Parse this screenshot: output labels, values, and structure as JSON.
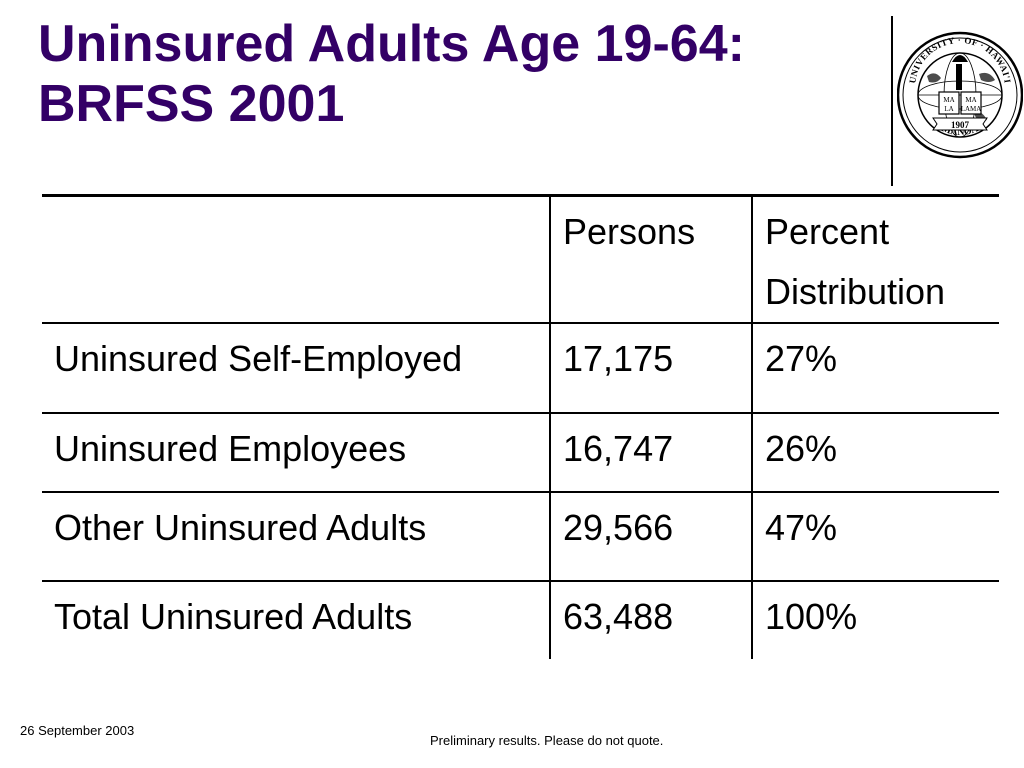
{
  "slide": {
    "title_line1": "Uninsured Adults Age 19-64:",
    "title_line2": "BRFSS 2001"
  },
  "seal": {
    "text_top": "UNIVERSITY · OF · HAWAI'I",
    "text_bottom": "MĀNOA",
    "text_year": "1907",
    "text_book": [
      "MA",
      "MA",
      "LA",
      "LAMA"
    ]
  },
  "table": {
    "headers": [
      "",
      "Persons",
      "Percent",
      "Distribution"
    ],
    "rows": [
      {
        "label": "Uninsured Self-Employed",
        "persons": "17,175",
        "percent": "27%"
      },
      {
        "label": "Uninsured Employees",
        "persons": "16,747",
        "percent": "26%"
      },
      {
        "label": "Other Uninsured Adults",
        "persons": "29,566",
        "percent": "47%"
      },
      {
        "label": "Total Uninsured Adults",
        "persons": "63,488",
        "percent": "100%"
      }
    ]
  },
  "footer": {
    "date": "26 September 2003",
    "note": "Preliminary results.  Please do not quote."
  },
  "colors": {
    "title": "#330066",
    "text": "#000000",
    "background": "#ffffff"
  }
}
